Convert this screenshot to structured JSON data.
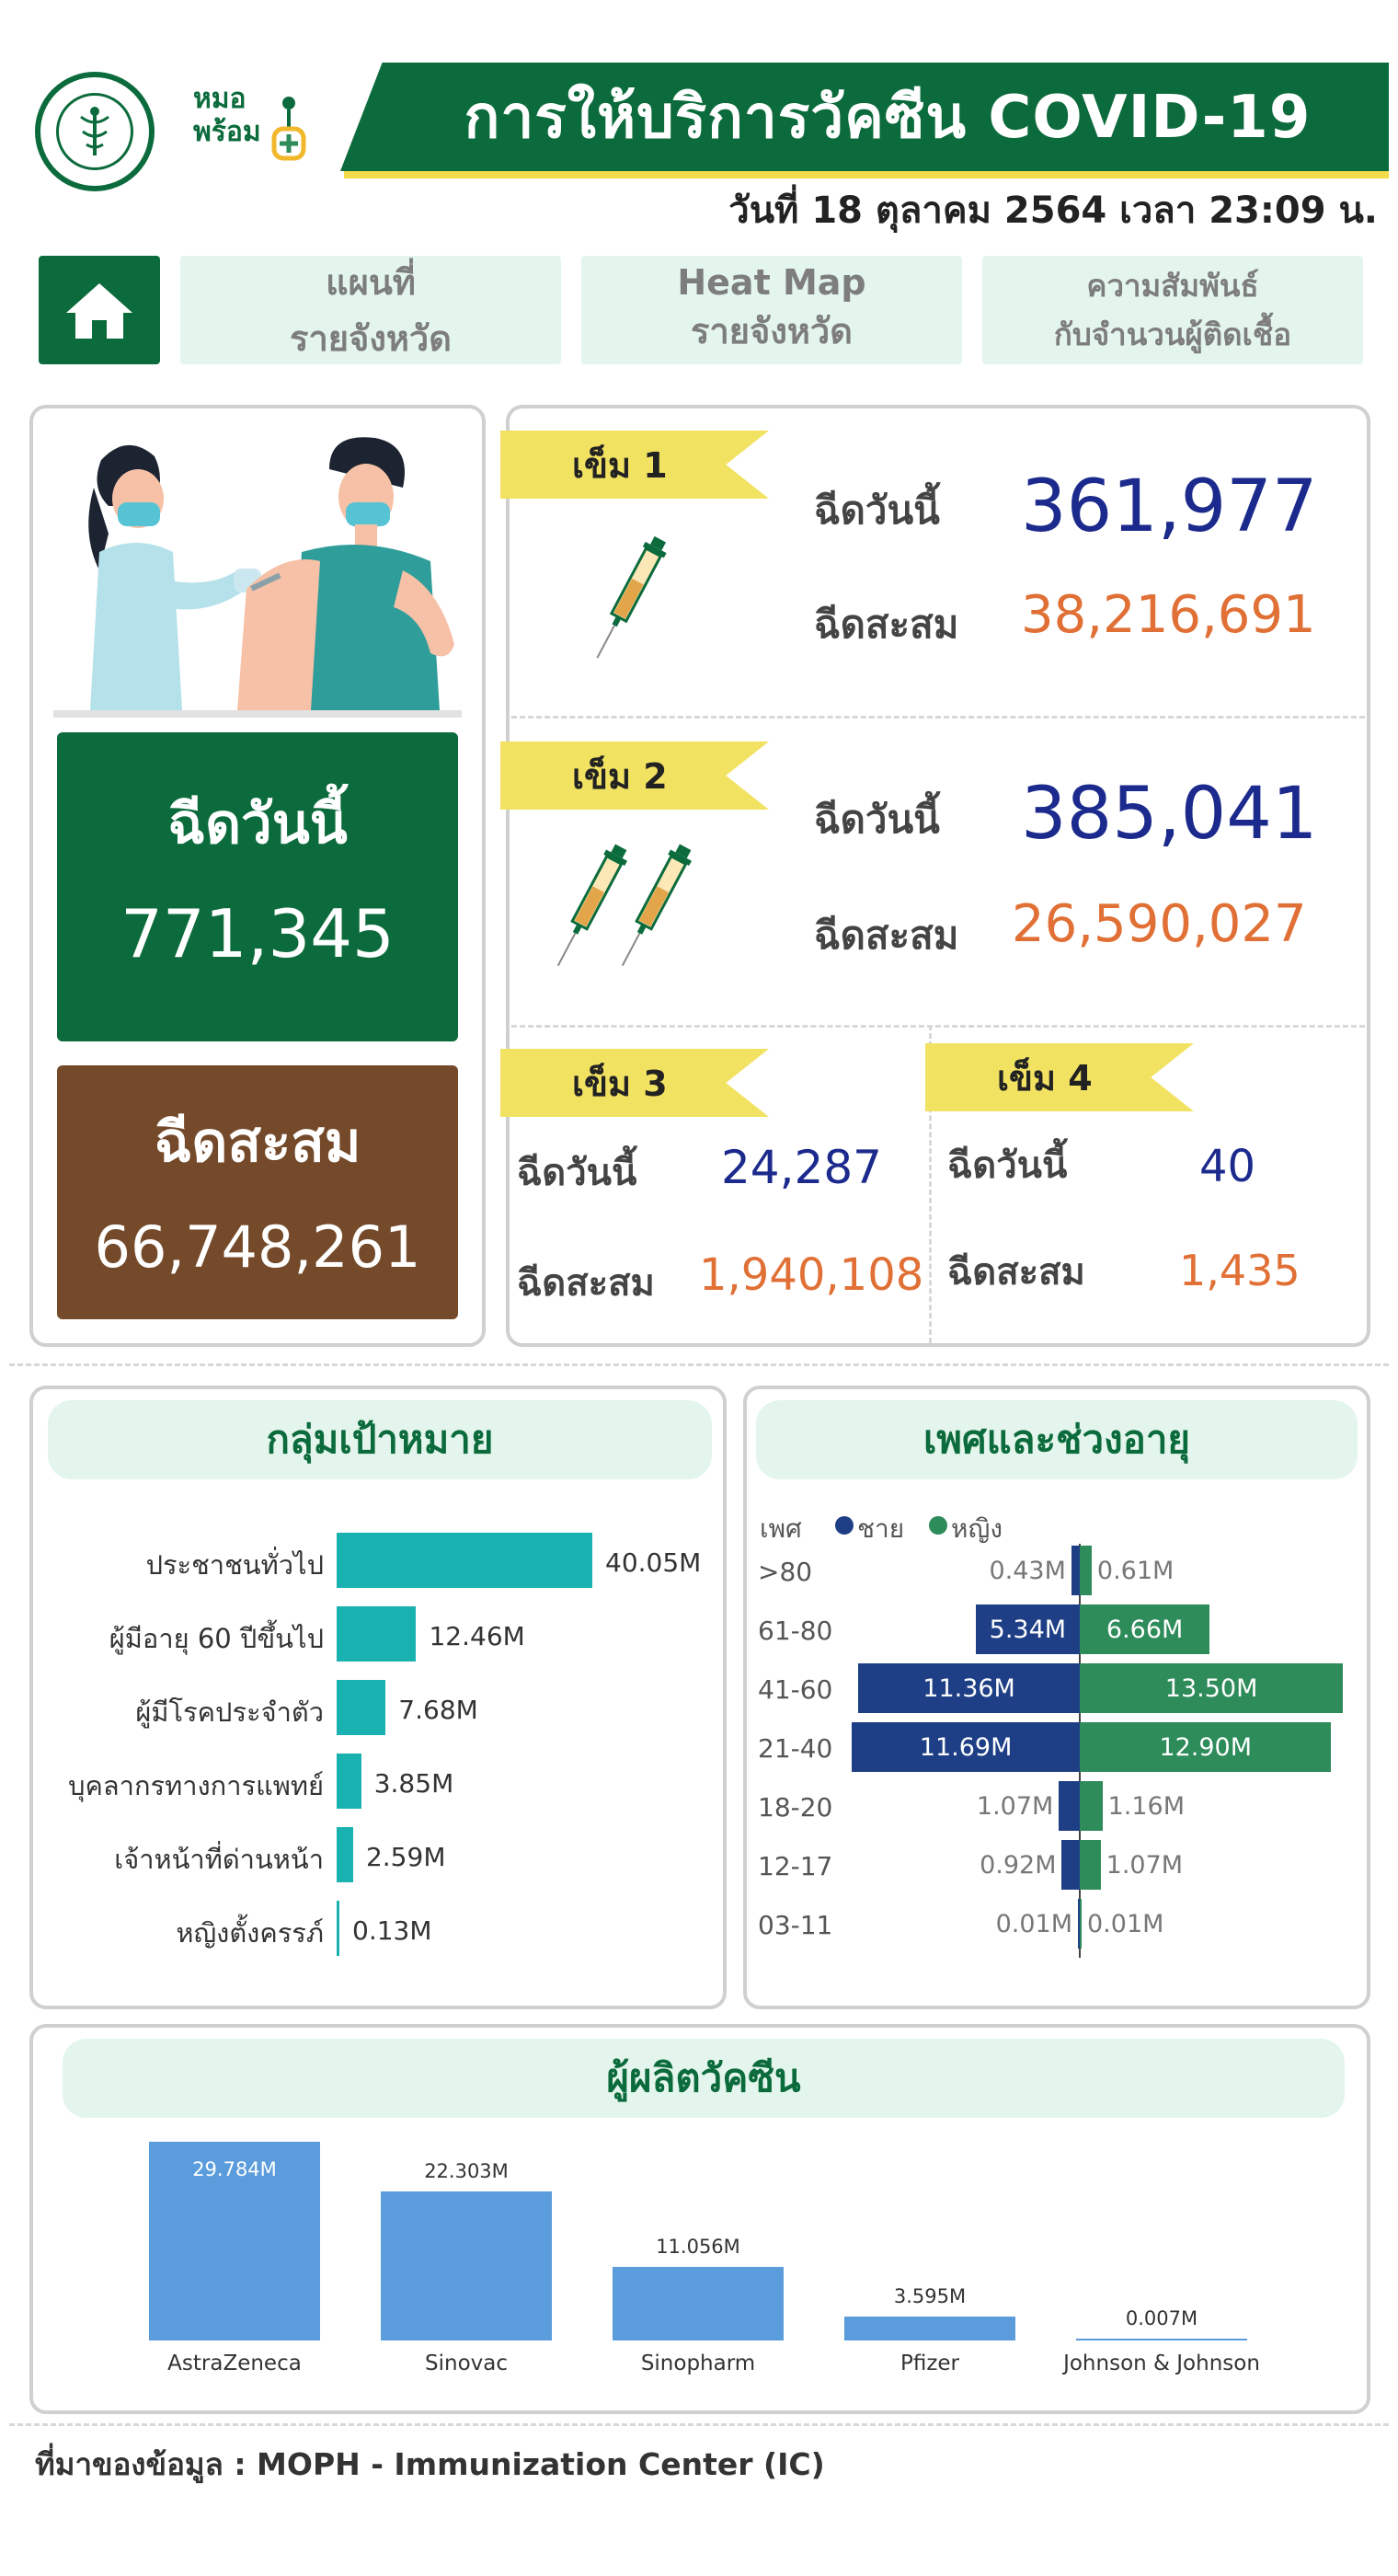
{
  "header": {
    "title": "การให้บริการวัคซีน COVID-19",
    "date": "วันที่ 18 ตุลาคม 2564 เวลา 23:09 น.",
    "logo_right_line1": "หมอ",
    "logo_right_line2": "พร้อม"
  },
  "nav": {
    "map": [
      "แผนที่",
      "รายจังหวัด"
    ],
    "heatmap": [
      "Heat Map",
      "รายจังหวัด"
    ],
    "relation": [
      "ความสัมพันธ์",
      "กับจำนวนผู้ติดเชื้อ"
    ]
  },
  "summary": {
    "today_label": "ฉีดวันนี้",
    "today_value": "771,345",
    "total_label": "ฉีดสะสม",
    "total_value": "66,748,261"
  },
  "doses": {
    "today_label": "ฉีดวันนี้",
    "total_label": "ฉีดสะสม",
    "d1": {
      "tag": "เข็ม 1",
      "today": "361,977",
      "total": "38,216,691"
    },
    "d2": {
      "tag": "เข็ม 2",
      "today": "385,041",
      "total": "26,590,027"
    },
    "d3": {
      "tag": "เข็ม 3",
      "today": "24,287",
      "total": "1,940,108"
    },
    "d4": {
      "tag": "เข็ม 4",
      "today": "40",
      "total": "1,435"
    }
  },
  "colors": {
    "green": "#0c6b3c",
    "brown": "#744a2a",
    "teal": "#1ab2b0",
    "male": "#1e3f86",
    "female": "#2e8b5a",
    "vaccine_bar": "#5a9cdc"
  },
  "chart_data": [
    {
      "type": "bar",
      "orientation": "horizontal",
      "title": "กลุ่มเป้าหมาย",
      "categories": [
        "ประชาชนทั่วไป",
        "ผู้มีอายุ 60 ปีขึ้นไป",
        "ผู้มีโรคประจำตัว",
        "บุคลากรทางการแพทย์",
        "เจ้าหน้าที่ด่านหน้า",
        "หญิงตั้งครรภ์"
      ],
      "values": [
        40.05,
        12.46,
        7.68,
        3.85,
        2.59,
        0.13
      ],
      "labels": [
        "40.05M",
        "12.46M",
        "7.68M",
        "3.85M",
        "2.59M",
        "0.13M"
      ]
    },
    {
      "type": "bar",
      "orientation": "horizontal",
      "layout": "population-pyramid",
      "title": "เพศและช่วงอายุ",
      "legend_title": "เพศ",
      "categories": [
        ">80",
        "61-80",
        "41-60",
        "21-40",
        "18-20",
        "12-17",
        "03-11"
      ],
      "series": [
        {
          "name": "ชาย",
          "values": [
            0.43,
            5.34,
            11.36,
            11.69,
            1.07,
            0.92,
            0.01
          ],
          "labels": [
            "0.43M",
            "5.34M",
            "11.36M",
            "11.69M",
            "1.07M",
            "0.92M",
            "0.01M"
          ]
        },
        {
          "name": "หญิง",
          "values": [
            0.61,
            6.66,
            13.5,
            12.9,
            1.16,
            1.07,
            0.01
          ],
          "labels": [
            "0.61M",
            "6.66M",
            "13.50M",
            "12.90M",
            "1.16M",
            "1.07M",
            "0.01M"
          ]
        }
      ]
    },
    {
      "type": "bar",
      "title": "ผู้ผลิตวัคซีน",
      "categories": [
        "AstraZeneca",
        "Sinovac",
        "Sinopharm",
        "Pfizer",
        "Johnson & Johnson"
      ],
      "values": [
        29.784,
        22.303,
        11.056,
        3.595,
        0.007
      ],
      "labels": [
        "29.784M",
        "22.303M",
        "11.056M",
        "3.595M",
        "0.007M"
      ]
    }
  ],
  "footer": {
    "source": "ที่มาของข้อมูล : MOPH - Immunization Center (IC)"
  }
}
